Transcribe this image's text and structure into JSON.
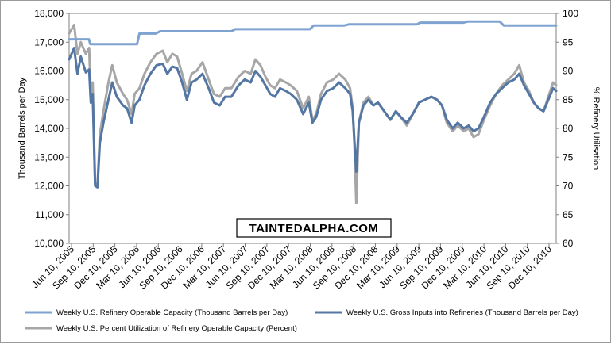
{
  "chart_data": {
    "type": "line",
    "ylabel_left": "Thousand Barrels per Day",
    "ylabel_right": "% Refinery Utilisation",
    "ylim_left": [
      10000,
      18000
    ],
    "ylim_right": [
      60,
      100
    ],
    "yticks_left": [
      "10,000",
      "11,000",
      "12,000",
      "13,000",
      "14,000",
      "15,000",
      "16,000",
      "17,000",
      "18,000"
    ],
    "yticks_right": [
      "60",
      "65",
      "70",
      "75",
      "80",
      "85",
      "90",
      "95",
      "100"
    ],
    "x_range": [
      "2005-06-03",
      "2011-01-07"
    ],
    "x_tick_labels": [
      "Jun 10, 2005",
      "Sep 10, 2005",
      "Dec 10, 2005",
      "Mar 10, 2006",
      "Jun 10, 2006",
      "Sep 10, 2006",
      "Dec 10, 2006",
      "Mar 10, 2007",
      "Jun 10, 2007",
      "Sep 10, 2007",
      "Dec 10, 2007",
      "Mar 10, 2008",
      "Jun 10, 2008",
      "Sep 10, 2008",
      "Dec 10, 2008",
      "Mar 10, 2009",
      "Jun 10, 2009",
      "Sep 10, 2009",
      "Dec 10, 2009",
      "Mar 10, 2010",
      "Jun 10, 2010",
      "Sep 10, 2010",
      "Dec 10, 2010"
    ],
    "grid": false,
    "legend_placement": "bottom",
    "watermark": "TAINTEDALPHA.COM",
    "series": [
      {
        "name": "Weekly U.S. Refinery Operable Capacity  (Thousand Barrels per Day)",
        "axis": "left",
        "color": "#7fa3d1",
        "points": [
          [
            "2005-06-03",
            17100
          ],
          [
            "2005-08-25",
            17100
          ],
          [
            "2005-08-31",
            16930
          ],
          [
            "2006-03-15",
            16930
          ],
          [
            "2006-03-25",
            17300
          ],
          [
            "2006-06-01",
            17300
          ],
          [
            "2006-06-20",
            17380
          ],
          [
            "2007-04-15",
            17380
          ],
          [
            "2007-05-01",
            17450
          ],
          [
            "2007-07-15",
            17450
          ],
          [
            "2008-03-10",
            17450
          ],
          [
            "2008-03-25",
            17580
          ],
          [
            "2008-08-01",
            17580
          ],
          [
            "2008-08-20",
            17620
          ],
          [
            "2009-06-01",
            17620
          ],
          [
            "2009-06-15",
            17680
          ],
          [
            "2009-12-15",
            17680
          ],
          [
            "2010-01-01",
            17720
          ],
          [
            "2010-05-15",
            17720
          ],
          [
            "2010-06-01",
            17580
          ],
          [
            "2011-01-07",
            17580
          ]
        ]
      },
      {
        "name": "Weekly U.S. Gross Inputs into Refineries  (Thousand Barrels per Day)",
        "axis": "left",
        "color": "#5476a3",
        "points": [
          [
            "2005-06-03",
            16400
          ],
          [
            "2005-06-24",
            16800
          ],
          [
            "2005-07-08",
            15900
          ],
          [
            "2005-07-22",
            16500
          ],
          [
            "2005-08-12",
            15950
          ],
          [
            "2005-08-26",
            16050
          ],
          [
            "2005-09-02",
            14900
          ],
          [
            "2005-09-10",
            15200
          ],
          [
            "2005-09-20",
            12000
          ],
          [
            "2005-09-30",
            11950
          ],
          [
            "2005-10-10",
            13500
          ],
          [
            "2005-10-25",
            14200
          ],
          [
            "2005-11-15",
            15000
          ],
          [
            "2005-12-01",
            15600
          ],
          [
            "2005-12-20",
            15100
          ],
          [
            "2006-01-15",
            14800
          ],
          [
            "2006-02-01",
            14700
          ],
          [
            "2006-02-20",
            14200
          ],
          [
            "2006-03-05",
            14800
          ],
          [
            "2006-03-25",
            15000
          ],
          [
            "2006-04-15",
            15500
          ],
          [
            "2006-05-10",
            15900
          ],
          [
            "2006-06-05",
            16200
          ],
          [
            "2006-07-01",
            16250
          ],
          [
            "2006-07-20",
            15900
          ],
          [
            "2006-08-10",
            16150
          ],
          [
            "2006-08-30",
            16100
          ],
          [
            "2006-09-20",
            15600
          ],
          [
            "2006-10-10",
            15000
          ],
          [
            "2006-10-30",
            15600
          ],
          [
            "2006-11-20",
            15700
          ],
          [
            "2006-12-15",
            15900
          ],
          [
            "2007-01-10",
            15400
          ],
          [
            "2007-02-01",
            14900
          ],
          [
            "2007-02-25",
            14800
          ],
          [
            "2007-03-20",
            15100
          ],
          [
            "2007-04-15",
            15100
          ],
          [
            "2007-05-15",
            15500
          ],
          [
            "2007-06-10",
            15700
          ],
          [
            "2007-07-05",
            15600
          ],
          [
            "2007-07-25",
            16000
          ],
          [
            "2007-08-15",
            15800
          ],
          [
            "2007-09-05",
            15500
          ],
          [
            "2007-09-25",
            15200
          ],
          [
            "2007-10-15",
            15100
          ],
          [
            "2007-11-05",
            15400
          ],
          [
            "2007-11-30",
            15300
          ],
          [
            "2007-12-20",
            15200
          ],
          [
            "2008-01-15",
            15000
          ],
          [
            "2008-02-10",
            14500
          ],
          [
            "2008-03-05",
            14900
          ],
          [
            "2008-03-20",
            14200
          ],
          [
            "2008-04-05",
            14400
          ],
          [
            "2008-04-25",
            15000
          ],
          [
            "2008-05-20",
            15300
          ],
          [
            "2008-06-15",
            15400
          ],
          [
            "2008-07-10",
            15600
          ],
          [
            "2008-08-05",
            15400
          ],
          [
            "2008-08-25",
            15200
          ],
          [
            "2008-09-05",
            14600
          ],
          [
            "2008-09-12",
            13600
          ],
          [
            "2008-09-20",
            12500
          ],
          [
            "2008-10-01",
            14200
          ],
          [
            "2008-10-20",
            14800
          ],
          [
            "2008-11-10",
            15000
          ],
          [
            "2008-12-01",
            14800
          ],
          [
            "2008-12-20",
            14900
          ],
          [
            "2009-01-15",
            14600
          ],
          [
            "2009-02-10",
            14300
          ],
          [
            "2009-03-05",
            14600
          ],
          [
            "2009-03-25",
            14400
          ],
          [
            "2009-04-20",
            14200
          ],
          [
            "2009-05-15",
            14500
          ],
          [
            "2009-06-10",
            14900
          ],
          [
            "2009-07-05",
            15000
          ],
          [
            "2009-08-01",
            15100
          ],
          [
            "2009-08-25",
            15000
          ],
          [
            "2009-09-15",
            14800
          ],
          [
            "2009-10-05",
            14300
          ],
          [
            "2009-10-30",
            14000
          ],
          [
            "2009-11-20",
            14200
          ],
          [
            "2009-12-15",
            14000
          ],
          [
            "2010-01-05",
            14100
          ],
          [
            "2010-01-25",
            13900
          ],
          [
            "2010-02-15",
            14000
          ],
          [
            "2010-03-10",
            14400
          ],
          [
            "2010-04-05",
            14900
          ],
          [
            "2010-04-30",
            15200
          ],
          [
            "2010-05-25",
            15400
          ],
          [
            "2010-06-20",
            15600
          ],
          [
            "2010-07-15",
            15700
          ],
          [
            "2010-08-05",
            15900
          ],
          [
            "2010-08-25",
            15500
          ],
          [
            "2010-09-15",
            15200
          ],
          [
            "2010-10-05",
            14900
          ],
          [
            "2010-10-25",
            14700
          ],
          [
            "2010-11-15",
            14600
          ],
          [
            "2010-12-05",
            15000
          ],
          [
            "2010-12-25",
            15400
          ],
          [
            "2011-01-07",
            15300
          ]
        ]
      },
      {
        "name": "Weekly U.S. Percent Utilization of Refinery Operable Capacity  (Percent)",
        "axis": "right",
        "color": "#a6a6a6",
        "points": [
          [
            "2005-06-03",
            96.5
          ],
          [
            "2005-06-24",
            98
          ],
          [
            "2005-07-08",
            93
          ],
          [
            "2005-07-22",
            95
          ],
          [
            "2005-08-12",
            93
          ],
          [
            "2005-08-26",
            94
          ],
          [
            "2005-09-02",
            86
          ],
          [
            "2005-09-10",
            88
          ],
          [
            "2005-09-20",
            70.5
          ],
          [
            "2005-09-30",
            70
          ],
          [
            "2005-10-10",
            79
          ],
          [
            "2005-10-25",
            83
          ],
          [
            "2005-11-15",
            88
          ],
          [
            "2005-12-01",
            91
          ],
          [
            "2005-12-20",
            88
          ],
          [
            "2006-01-15",
            86
          ],
          [
            "2006-02-01",
            85
          ],
          [
            "2006-02-20",
            82.5
          ],
          [
            "2006-03-05",
            86
          ],
          [
            "2006-03-25",
            87
          ],
          [
            "2006-04-15",
            89.5
          ],
          [
            "2006-05-10",
            91.5
          ],
          [
            "2006-06-05",
            93
          ],
          [
            "2006-07-01",
            93.5
          ],
          [
            "2006-07-20",
            91.5
          ],
          [
            "2006-08-10",
            93
          ],
          [
            "2006-08-30",
            92.5
          ],
          [
            "2006-09-20",
            89.5
          ],
          [
            "2006-10-10",
            86.5
          ],
          [
            "2006-10-30",
            89.5
          ],
          [
            "2006-11-20",
            90
          ],
          [
            "2006-12-15",
            91.5
          ],
          [
            "2007-01-10",
            88.5
          ],
          [
            "2007-02-01",
            86
          ],
          [
            "2007-02-25",
            85.5
          ],
          [
            "2007-03-20",
            87
          ],
          [
            "2007-04-15",
            87
          ],
          [
            "2007-05-15",
            89
          ],
          [
            "2007-06-10",
            90
          ],
          [
            "2007-07-05",
            89.5
          ],
          [
            "2007-07-25",
            92
          ],
          [
            "2007-08-15",
            91
          ],
          [
            "2007-09-05",
            89
          ],
          [
            "2007-09-25",
            87.5
          ],
          [
            "2007-10-15",
            87
          ],
          [
            "2007-11-05",
            88.5
          ],
          [
            "2007-11-30",
            88
          ],
          [
            "2007-12-20",
            87.5
          ],
          [
            "2008-01-15",
            86.5
          ],
          [
            "2008-02-10",
            83.5
          ],
          [
            "2008-03-05",
            85.5
          ],
          [
            "2008-03-20",
            81.5
          ],
          [
            "2008-04-05",
            82.5
          ],
          [
            "2008-04-25",
            86
          ],
          [
            "2008-05-20",
            88
          ],
          [
            "2008-06-15",
            88.5
          ],
          [
            "2008-07-10",
            89.5
          ],
          [
            "2008-08-05",
            88.5
          ],
          [
            "2008-08-25",
            87
          ],
          [
            "2008-09-05",
            83.5
          ],
          [
            "2008-09-12",
            77.5
          ],
          [
            "2008-09-20",
            67
          ],
          [
            "2008-10-01",
            81
          ],
          [
            "2008-10-20",
            84.5
          ],
          [
            "2008-11-10",
            85.5
          ],
          [
            "2008-12-01",
            84
          ],
          [
            "2008-12-20",
            84.5
          ],
          [
            "2009-01-15",
            83
          ],
          [
            "2009-02-10",
            81.5
          ],
          [
            "2009-03-05",
            83
          ],
          [
            "2009-03-25",
            82
          ],
          [
            "2009-04-20",
            80.5
          ],
          [
            "2009-05-15",
            82.5
          ],
          [
            "2009-06-10",
            84.5
          ],
          [
            "2009-07-05",
            85
          ],
          [
            "2009-08-01",
            85.5
          ],
          [
            "2009-08-25",
            85
          ],
          [
            "2009-09-15",
            84
          ],
          [
            "2009-10-05",
            81
          ],
          [
            "2009-10-30",
            79.5
          ],
          [
            "2009-11-20",
            80.5
          ],
          [
            "2009-12-15",
            79.5
          ],
          [
            "2010-01-05",
            80
          ],
          [
            "2010-01-25",
            78.5
          ],
          [
            "2010-02-15",
            79
          ],
          [
            "2010-03-10",
            81.5
          ],
          [
            "2010-04-05",
            84
          ],
          [
            "2010-04-30",
            86
          ],
          [
            "2010-05-25",
            87.5
          ],
          [
            "2010-06-20",
            88.5
          ],
          [
            "2010-07-15",
            89.5
          ],
          [
            "2010-08-05",
            91
          ],
          [
            "2010-08-25",
            88
          ],
          [
            "2010-09-15",
            86.5
          ],
          [
            "2010-10-05",
            84.5
          ],
          [
            "2010-10-25",
            83.5
          ],
          [
            "2010-11-15",
            83
          ],
          [
            "2010-12-05",
            85.5
          ],
          [
            "2010-12-25",
            88
          ],
          [
            "2011-01-07",
            87.5
          ]
        ]
      }
    ]
  }
}
